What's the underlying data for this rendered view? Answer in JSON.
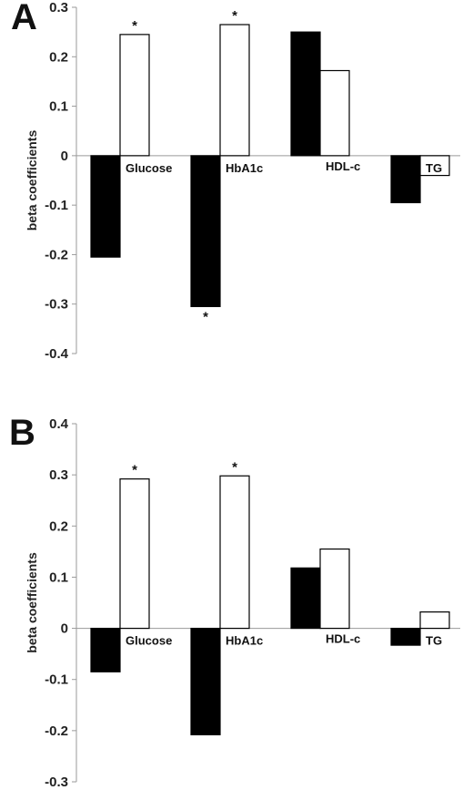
{
  "chart_data": [
    {
      "type": "bar",
      "panel_label": "A",
      "categories": [
        "Glucose",
        "HbA1c",
        "HDL-c",
        "TG"
      ],
      "series": [
        {
          "fill": "#000000",
          "values": [
            -0.205,
            -0.305,
            0.25,
            -0.095
          ],
          "significant": [
            false,
            true,
            false,
            false
          ]
        },
        {
          "fill": "#ffffff",
          "values": [
            0.245,
            0.265,
            0.172,
            -0.04
          ],
          "significant": [
            true,
            true,
            false,
            false
          ]
        }
      ],
      "ylabel": "beta coefficients",
      "ylim": [
        -0.4,
        0.3
      ],
      "yticks": [
        0.3,
        0.2,
        0.1,
        0,
        -0.1,
        -0.2,
        -0.3,
        -0.4
      ],
      "ytick_labels": [
        "0.3",
        "0.2",
        "0.1",
        "0",
        "-0.1",
        "-0.2",
        "-0.3",
        "-0.4"
      ],
      "significance_marker": "*",
      "grid": false,
      "legend": "none"
    },
    {
      "type": "bar",
      "panel_label": "B",
      "categories": [
        "Glucose",
        "HbA1c",
        "HDL-c",
        "TG"
      ],
      "series": [
        {
          "fill": "#000000",
          "values": [
            -0.085,
            -0.208,
            0.118,
            -0.033
          ],
          "significant": [
            false,
            false,
            false,
            false
          ]
        },
        {
          "fill": "#ffffff",
          "values": [
            0.292,
            0.298,
            0.155,
            0.032
          ],
          "significant": [
            true,
            true,
            false,
            false
          ]
        }
      ],
      "ylabel": "beta coefficients",
      "ylim": [
        -0.3,
        0.4
      ],
      "yticks": [
        0.4,
        0.3,
        0.2,
        0.1,
        0,
        -0.1,
        -0.2,
        -0.3
      ],
      "ytick_labels": [
        "0.4",
        "0.3",
        "0.2",
        "0.1",
        "0",
        "-0.1",
        "-0.2",
        "-0.3"
      ],
      "significance_marker": "*",
      "grid": false,
      "legend": "none"
    }
  ]
}
